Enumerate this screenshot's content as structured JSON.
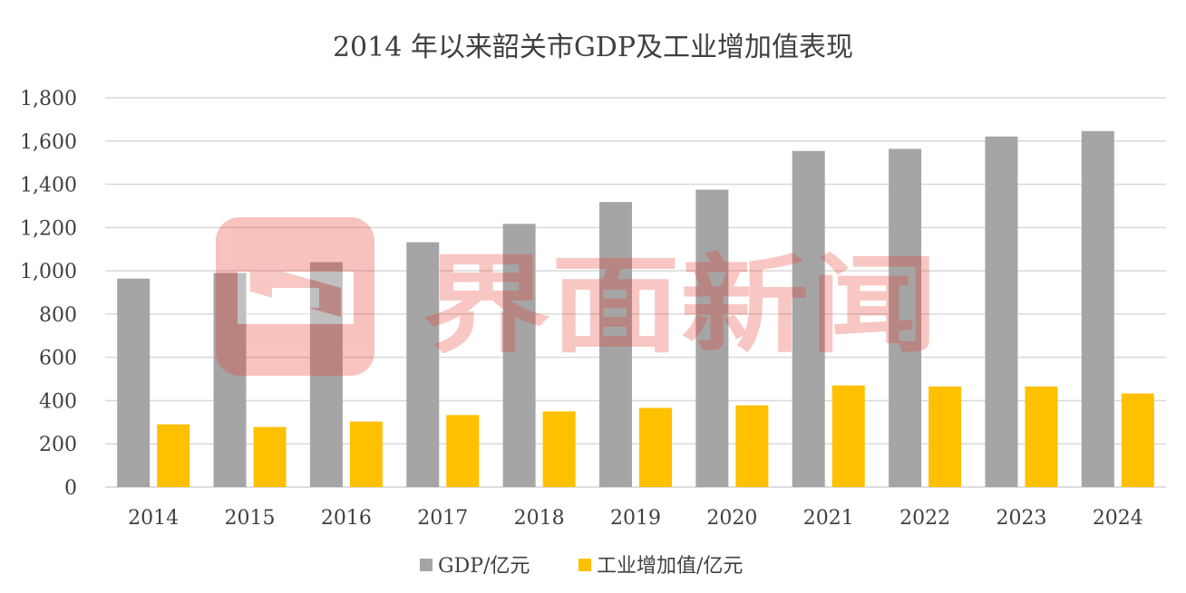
{
  "chart_data": {
    "type": "bar",
    "title": "2014 年以来韶关市GDP及工业增加值表现",
    "categories": [
      "2014",
      "2015",
      "2016",
      "2017",
      "2018",
      "2019",
      "2020",
      "2021",
      "2022",
      "2023",
      "2024"
    ],
    "series": [
      {
        "name": "GDP/亿元",
        "color": "#a5a5a5",
        "values": [
          964,
          990,
          1040,
          1132,
          1217,
          1318,
          1375,
          1554,
          1564,
          1621,
          1646
        ]
      },
      {
        "name": "工业增加值/亿元",
        "color": "#ffc000",
        "values": [
          290,
          278,
          303,
          333,
          350,
          366,
          378,
          470,
          465,
          465,
          433
        ]
      }
    ],
    "y_ticks": [
      "0",
      "200",
      "400",
      "600",
      "800",
      "1,000",
      "1,200",
      "1,400",
      "1,600",
      "1,800"
    ],
    "ylim": [
      0,
      1800
    ],
    "xlabel": "",
    "ylabel": "",
    "grid": true,
    "legend_position": "bottom"
  },
  "watermark": {
    "text": "界面新闻",
    "logo_icon": "jiemian-logo-icon",
    "color": "#e8392c"
  },
  "colors": {
    "gridline": "#d9d9d9",
    "text": "#404040"
  }
}
